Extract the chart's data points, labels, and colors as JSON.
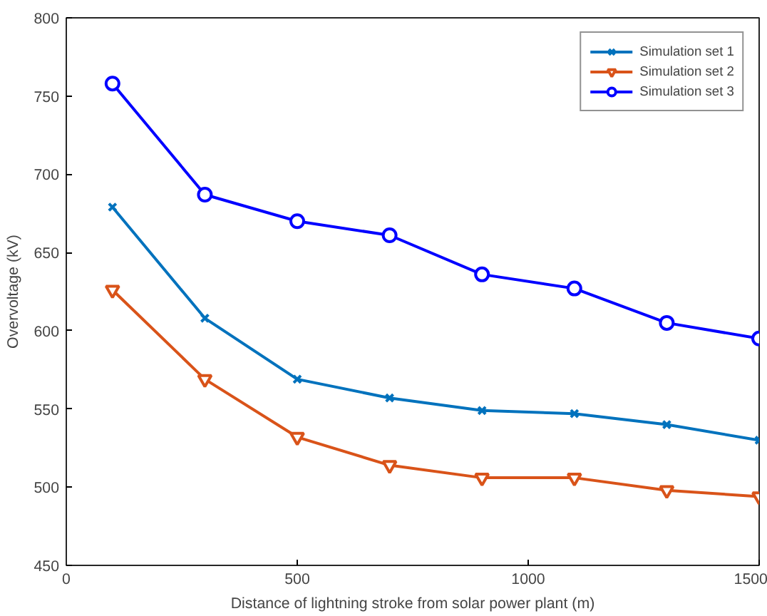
{
  "chart_data": {
    "type": "line",
    "xlabel": "Distance of lightning stroke from solar power plant (m)",
    "ylabel": "Overvoltage (kV)",
    "x": [
      100,
      300,
      500,
      700,
      900,
      1100,
      1300,
      1500
    ],
    "series": [
      {
        "name": "Simulation set 1",
        "color": "#0072bd",
        "marker": "cross",
        "values": [
          679,
          608,
          569,
          557,
          549,
          547,
          540,
          530
        ]
      },
      {
        "name": "Simulation set 2",
        "color": "#d95319",
        "marker": "triangle",
        "values": [
          626,
          569,
          532,
          514,
          506,
          506,
          498,
          494
        ]
      },
      {
        "name": "Simulation set 3",
        "color": "#0000ff",
        "marker": "circle",
        "values": [
          758,
          687,
          670,
          661,
          636,
          627,
          605,
          595
        ]
      }
    ],
    "xlim": [
      0,
      1500
    ],
    "xticks": [
      0,
      500,
      1000,
      1500
    ],
    "ylim": [
      450,
      800
    ],
    "yticks": [
      450,
      500,
      550,
      600,
      650,
      700,
      750,
      800
    ],
    "grid": false,
    "legend": "top right",
    "line_style": "solid"
  }
}
